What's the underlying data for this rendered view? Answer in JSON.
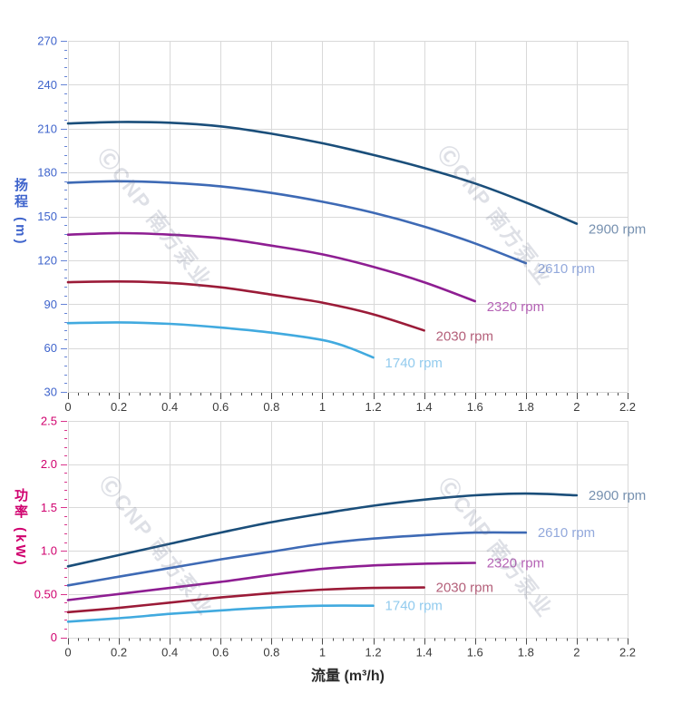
{
  "watermark": {
    "text": "ⒸCNP 南方泵业"
  },
  "chart_data": [
    {
      "type": "line",
      "id": "head",
      "title": "",
      "ylabel": "扬程 (m)",
      "xlabel": "",
      "y_axis": {
        "title": "扬程",
        "unit": "(m)",
        "color": "#3F64CC",
        "min": 30,
        "max": 270,
        "major_step": 30,
        "minor_per_major": 5,
        "tick_labels": [
          "30",
          "60",
          "90",
          "120",
          "150",
          "180",
          "210",
          "240",
          "270"
        ]
      },
      "x_axis": {
        "min": 0,
        "max": 2.2,
        "major_step": 0.2,
        "minor_per_major": 5,
        "tick_labels": [
          "0",
          "0.2",
          "0.4",
          "0.6",
          "0.8",
          "1",
          "1.2",
          "1.4",
          "1.6",
          "1.8",
          "2",
          "2.2"
        ],
        "label_color": "#3b3b3b"
      },
      "grid": true,
      "legend_position": "curve-end-right",
      "series": [
        {
          "name": "2900 rpm",
          "color": "#1A4E7A",
          "label_color": "#7791B0",
          "points": [
            [
              0,
              213.5
            ],
            [
              0.2,
              214.5
            ],
            [
              0.4,
              214
            ],
            [
              0.6,
              211.5
            ],
            [
              0.8,
              206.5
            ],
            [
              1.0,
              200
            ],
            [
              1.2,
              192
            ],
            [
              1.4,
              183
            ],
            [
              1.6,
              172.5
            ],
            [
              1.8,
              159.5
            ],
            [
              2.0,
              145
            ]
          ]
        },
        {
          "name": "2610 rpm",
          "color": "#3E6AB5",
          "label_color": "#93A9DC",
          "points": [
            [
              0,
              173
            ],
            [
              0.2,
              174
            ],
            [
              0.4,
              173
            ],
            [
              0.6,
              170.5
            ],
            [
              0.8,
              166
            ],
            [
              1.0,
              160
            ],
            [
              1.2,
              152.5
            ],
            [
              1.4,
              143
            ],
            [
              1.6,
              131.5
            ],
            [
              1.8,
              118
            ]
          ]
        },
        {
          "name": "2320 rpm",
          "color": "#8E1E92",
          "label_color": "#B563B5",
          "points": [
            [
              0,
              137.5
            ],
            [
              0.2,
              138.5
            ],
            [
              0.4,
              137.5
            ],
            [
              0.6,
              135
            ],
            [
              0.8,
              130
            ],
            [
              1.0,
              124
            ],
            [
              1.2,
              115.5
            ],
            [
              1.4,
              105
            ],
            [
              1.6,
              92
            ]
          ]
        },
        {
          "name": "2030 rpm",
          "color": "#9B1B38",
          "label_color": "#B4607A",
          "points": [
            [
              0,
              105
            ],
            [
              0.2,
              105.5
            ],
            [
              0.4,
              104.5
            ],
            [
              0.6,
              101.5
            ],
            [
              0.8,
              96.5
            ],
            [
              1.0,
              91
            ],
            [
              1.2,
              83
            ],
            [
              1.4,
              72
            ]
          ]
        },
        {
          "name": "1740 rpm",
          "color": "#41AADF",
          "label_color": "#92CBEE",
          "points": [
            [
              0,
              77
            ],
            [
              0.2,
              77.5
            ],
            [
              0.4,
              76.5
            ],
            [
              0.6,
              74
            ],
            [
              0.8,
              70.5
            ],
            [
              1.0,
              65.5
            ],
            [
              1.1,
              60.5
            ],
            [
              1.2,
              53.5
            ]
          ]
        }
      ]
    },
    {
      "type": "line",
      "id": "power",
      "title": "",
      "ylabel": "功率 (kW)",
      "xlabel": "流量 (m³/h)",
      "y_axis": {
        "title": "功率",
        "unit": "(kW)",
        "color": "#D0006E",
        "min": 0,
        "max": 2.5,
        "major_step": 0.5,
        "minor_per_major": 5,
        "tick_labels": [
          "0",
          "0.50",
          "1.0",
          "1.5",
          "2.0",
          "2.5"
        ]
      },
      "x_axis": {
        "min": 0,
        "max": 2.2,
        "major_step": 0.2,
        "minor_per_major": 5,
        "tick_labels": [
          "0",
          "0.2",
          "0.4",
          "0.6",
          "0.8",
          "1",
          "1.2",
          "1.4",
          "1.6",
          "1.8",
          "2",
          "2.2"
        ],
        "label_color": "#3b3b3b"
      },
      "grid": true,
      "legend_position": "curve-end-right",
      "series": [
        {
          "name": "2900 rpm",
          "color": "#1A4E7A",
          "label_color": "#7791B0",
          "points": [
            [
              0,
              0.82
            ],
            [
              0.2,
              0.95
            ],
            [
              0.4,
              1.08
            ],
            [
              0.6,
              1.21
            ],
            [
              0.8,
              1.33
            ],
            [
              1.0,
              1.43
            ],
            [
              1.2,
              1.52
            ],
            [
              1.4,
              1.59
            ],
            [
              1.6,
              1.64
            ],
            [
              1.8,
              1.66
            ],
            [
              2.0,
              1.64
            ]
          ]
        },
        {
          "name": "2610 rpm",
          "color": "#3E6AB5",
          "label_color": "#93A9DC",
          "points": [
            [
              0,
              0.6
            ],
            [
              0.2,
              0.7
            ],
            [
              0.4,
              0.8
            ],
            [
              0.6,
              0.9
            ],
            [
              0.8,
              0.99
            ],
            [
              1.0,
              1.08
            ],
            [
              1.2,
              1.14
            ],
            [
              1.4,
              1.18
            ],
            [
              1.6,
              1.21
            ],
            [
              1.8,
              1.21
            ]
          ]
        },
        {
          "name": "2320 rpm",
          "color": "#8E1E92",
          "label_color": "#B563B5",
          "points": [
            [
              0,
              0.43
            ],
            [
              0.2,
              0.5
            ],
            [
              0.4,
              0.57
            ],
            [
              0.6,
              0.64
            ],
            [
              0.8,
              0.72
            ],
            [
              1.0,
              0.79
            ],
            [
              1.2,
              0.83
            ],
            [
              1.4,
              0.85
            ],
            [
              1.6,
              0.86
            ]
          ]
        },
        {
          "name": "2030 rpm",
          "color": "#9B1B38",
          "label_color": "#B4607A",
          "points": [
            [
              0,
              0.29
            ],
            [
              0.2,
              0.34
            ],
            [
              0.4,
              0.4
            ],
            [
              0.6,
              0.46
            ],
            [
              0.8,
              0.51
            ],
            [
              1.0,
              0.55
            ],
            [
              1.2,
              0.57
            ],
            [
              1.4,
              0.575
            ]
          ]
        },
        {
          "name": "1740 rpm",
          "color": "#41AADF",
          "label_color": "#92CBEE",
          "points": [
            [
              0,
              0.18
            ],
            [
              0.2,
              0.22
            ],
            [
              0.4,
              0.27
            ],
            [
              0.6,
              0.31
            ],
            [
              0.8,
              0.345
            ],
            [
              1.0,
              0.365
            ],
            [
              1.2,
              0.365
            ]
          ]
        }
      ]
    }
  ]
}
